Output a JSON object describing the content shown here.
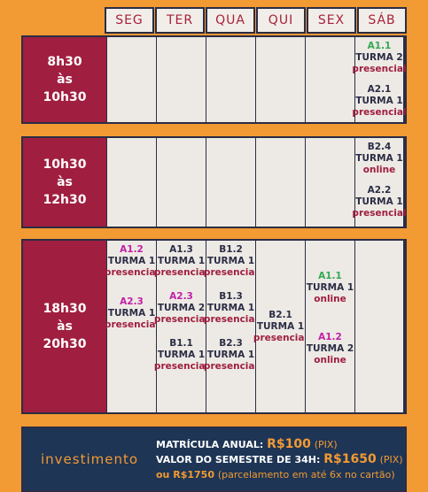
{
  "days": [
    "SEG",
    "TER",
    "QUA",
    "QUI",
    "SEX",
    "SÁB"
  ],
  "blocks": [
    {
      "time": [
        "8h30",
        "às",
        "10h30"
      ],
      "cells": [
        [],
        [],
        [],
        [],
        [],
        [
          {
            "level": "A1.1",
            "turma": "TURMA 2",
            "mode": "presencial",
            "color": "green"
          },
          {
            "level": "A2.1",
            "turma": "TURMA 1",
            "mode": "presencial",
            "color": "dark"
          }
        ]
      ]
    },
    {
      "time": [
        "10h30",
        "às",
        "12h30"
      ],
      "cells": [
        [],
        [],
        [],
        [],
        [],
        [
          {
            "level": "B2.4",
            "turma": "TURMA 1",
            "mode": "online",
            "color": "dark"
          },
          {
            "level": "A2.2",
            "turma": "TURMA 1",
            "mode": "presencial",
            "color": "dark"
          }
        ]
      ]
    },
    {
      "time": [
        "18h30",
        "às",
        "20h30"
      ],
      "cells": [
        [
          {
            "level": "A1.2",
            "turma": "TURMA 1",
            "mode": "presencial",
            "color": "magenta"
          },
          {
            "level": "A2.3",
            "turma": "TURMA 1",
            "mode": "presencial",
            "color": "magenta"
          }
        ],
        [
          {
            "level": "A1.3",
            "turma": "TURMA 1",
            "mode": "presencial",
            "color": "dark"
          },
          {
            "level": "A2.3",
            "turma": "TURMA 2",
            "mode": "presencial",
            "color": "magenta"
          },
          {
            "level": "B1.1",
            "turma": "TURMA 1",
            "mode": "presencial",
            "color": "dark"
          }
        ],
        [
          {
            "level": "B1.2",
            "turma": "TURMA 1",
            "mode": "presencial",
            "color": "dark"
          },
          {
            "level": "B1.3",
            "turma": "TURMA 1",
            "mode": "presencial",
            "color": "dark"
          },
          {
            "level": "B2.3",
            "turma": "TURMA 1",
            "mode": "presencial",
            "color": "dark"
          }
        ],
        [
          {
            "level": "B2.1",
            "turma": "TURMA 1",
            "mode": "presencial",
            "color": "dark"
          }
        ],
        [
          {
            "level": "A1.1",
            "turma": "TURMA 1",
            "mode": "online",
            "color": "green"
          },
          {
            "level": "A1.2",
            "turma": "TURMA 2",
            "mode": "online",
            "color": "magenta"
          }
        ],
        []
      ]
    }
  ],
  "footer": {
    "label": "investimento",
    "line1_prefix": "MATRÍCULA ANUAL:",
    "line1_price": "R$100",
    "line1_note": "(PIX)",
    "line2_prefix": "VALOR DO SEMESTRE DE 34H:",
    "line2_price": "R$1650",
    "line2_note": "(PIX)",
    "line3_prefix": "ou",
    "line3_price": "R$1750",
    "line3_note": "(parcelamento em até 6x no cartão)"
  },
  "colors": {
    "background": "#F29A33",
    "time_block": "#A01E3F",
    "border": "#2B2D45",
    "footer": "#1E3555",
    "green": "#33A852",
    "magenta": "#C21EA6"
  }
}
